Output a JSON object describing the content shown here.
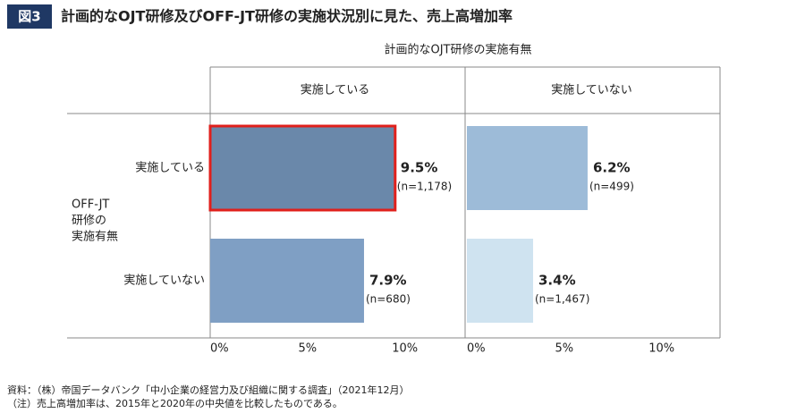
{
  "chart_data": {
    "type": "faceted-bar",
    "figure_label": "図3",
    "title": "計画的なOJT研修及びOFF-JT研修の実施状況別に見た、売上高増加率",
    "column_title": "計画的なOJT研修の実施有無",
    "row_axis_title": [
      "OFF-JT",
      "研修の",
      "実施有無"
    ],
    "categories": [
      "実施している",
      "実施していない"
    ],
    "panels": [
      {
        "name": "実施している",
        "values": [
          9.5,
          7.9
        ],
        "value_labels": [
          "9.5%",
          "7.9%"
        ],
        "n_labels": [
          "(n=1,178)",
          "(n=680)"
        ],
        "colors": [
          "#6a88aa",
          "#7f9fc4"
        ]
      },
      {
        "name": "実施していない",
        "values": [
          6.2,
          3.4
        ],
        "value_labels": [
          "6.2%",
          "3.4%"
        ],
        "n_labels": [
          "(n=499)",
          "(n=1,467)"
        ],
        "colors": [
          "#9dbbd8",
          "#cfe3f0"
        ]
      }
    ],
    "highlight": {
      "panel": 0,
      "category": 0,
      "color": "#e0201c"
    },
    "xlim": [
      0,
      13
    ],
    "xticks": [
      {
        "value": 0,
        "label": "0%"
      },
      {
        "value": 5,
        "label": "5%"
      },
      {
        "value": 10,
        "label": "10%"
      }
    ],
    "notes": [
      "資料：（株）帝国データバンク「中小企業の経営力及び組織に関する調査」（2021年12月）",
      "（注）売上高増加率は、2015年と2020年の中央値を比較したものである。"
    ]
  }
}
